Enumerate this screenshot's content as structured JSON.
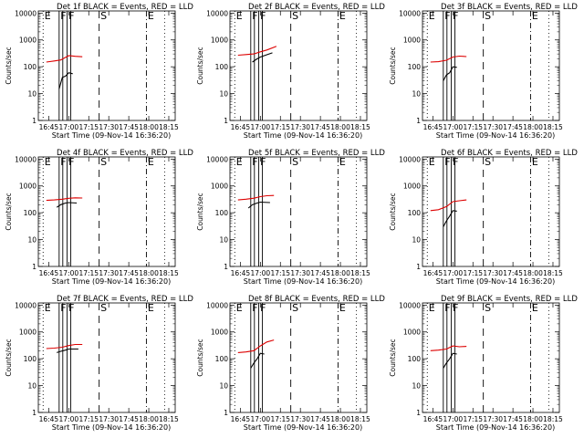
{
  "chart_data": {
    "type": "line",
    "panels": [
      {
        "title": "Det 1f BLACK = Events, RED = LLD",
        "xlabel": "Start Time (09-Nov-14 16:36:20)",
        "ylabel": "Counts/sec",
        "red": [
          [
            16.72,
            150
          ],
          [
            16.82,
            165
          ],
          [
            16.9,
            180
          ],
          [
            17.0,
            260
          ],
          [
            17.08,
            245
          ],
          [
            17.17,
            235
          ]
        ],
        "black": [
          [
            16.88,
            15
          ],
          [
            16.92,
            40
          ],
          [
            16.96,
            45
          ],
          [
            17.0,
            60
          ],
          [
            17.05,
            55
          ]
        ],
        "markers": [
          "E",
          "F",
          "F",
          "S",
          "E"
        ]
      },
      {
        "title": "Det 2f BLACK = Events, RED = LLD",
        "xlabel": "Start Time (09-Nov-14 16:36:20)",
        "ylabel": "Counts/sec",
        "red": [
          [
            16.72,
            270
          ],
          [
            16.82,
            285
          ],
          [
            16.92,
            300
          ],
          [
            17.0,
            360
          ],
          [
            17.08,
            420
          ],
          [
            17.2,
            580
          ]
        ],
        "black": [
          [
            16.9,
            150
          ],
          [
            16.95,
            190
          ],
          [
            17.0,
            230
          ],
          [
            17.08,
            280
          ],
          [
            17.15,
            330
          ]
        ],
        "markers": [
          "E",
          "F",
          "F",
          "S",
          "E"
        ]
      },
      {
        "title": "Det 3f BLACK = Events, RED = LLD",
        "xlabel": "Start Time (09-Nov-14 16:36:20)",
        "ylabel": "Counts/sec",
        "red": [
          [
            16.72,
            150
          ],
          [
            16.82,
            155
          ],
          [
            16.92,
            175
          ],
          [
            17.0,
            230
          ],
          [
            17.08,
            250
          ],
          [
            17.17,
            240
          ]
        ],
        "black": [
          [
            16.88,
            30
          ],
          [
            16.92,
            50
          ],
          [
            16.96,
            60
          ],
          [
            17.0,
            100
          ],
          [
            17.05,
            95
          ]
        ],
        "markers": [
          "E",
          "F",
          "F",
          "S",
          "E"
        ]
      },
      {
        "title": "Det 4f BLACK = Events, RED = LLD",
        "xlabel": "Start Time (09-Nov-14 16:36:20)",
        "ylabel": "Counts/sec",
        "red": [
          [
            16.72,
            290
          ],
          [
            16.82,
            300
          ],
          [
            16.92,
            320
          ],
          [
            17.0,
            345
          ],
          [
            17.08,
            360
          ],
          [
            17.17,
            355
          ]
        ],
        "black": [
          [
            16.85,
            160
          ],
          [
            16.9,
            200
          ],
          [
            16.96,
            230
          ],
          [
            17.0,
            240
          ],
          [
            17.1,
            230
          ]
        ],
        "markers": [
          "E",
          "F",
          "F",
          "S",
          "E"
        ]
      },
      {
        "title": "Det 5f BLACK = Events, RED = LLD",
        "xlabel": "Start Time (09-Nov-14 16:36:20)",
        "ylabel": "Counts/sec",
        "red": [
          [
            16.72,
            300
          ],
          [
            16.82,
            320
          ],
          [
            16.92,
            350
          ],
          [
            17.0,
            400
          ],
          [
            17.08,
            430
          ],
          [
            17.17,
            440
          ]
        ],
        "black": [
          [
            16.85,
            150
          ],
          [
            16.9,
            200
          ],
          [
            16.96,
            230
          ],
          [
            17.0,
            250
          ],
          [
            17.12,
            240
          ]
        ],
        "markers": [
          "E",
          "F",
          "F",
          "S",
          "E"
        ]
      },
      {
        "title": "Det 6f BLACK = Events, RED = LLD",
        "xlabel": "Start Time (09-Nov-14 16:36:20)",
        "ylabel": "Counts/sec",
        "red": [
          [
            16.72,
            120
          ],
          [
            16.82,
            130
          ],
          [
            16.92,
            170
          ],
          [
            17.0,
            260
          ],
          [
            17.08,
            280
          ],
          [
            17.17,
            300
          ]
        ],
        "black": [
          [
            16.88,
            30
          ],
          [
            16.92,
            50
          ],
          [
            16.96,
            75
          ],
          [
            17.0,
            120
          ],
          [
            17.05,
            115
          ]
        ],
        "markers": [
          "E",
          "F",
          "F",
          "S",
          "E"
        ]
      },
      {
        "title": "Det 7f BLACK = Events, RED = LLD",
        "xlabel": "Start Time (09-Nov-14 16:36:20)",
        "ylabel": "Counts/sec",
        "red": [
          [
            16.72,
            240
          ],
          [
            16.82,
            250
          ],
          [
            16.92,
            270
          ],
          [
            17.0,
            310
          ],
          [
            17.08,
            340
          ],
          [
            17.17,
            340
          ]
        ],
        "black": [
          [
            16.85,
            170
          ],
          [
            16.9,
            190
          ],
          [
            16.96,
            210
          ],
          [
            17.0,
            230
          ],
          [
            17.12,
            230
          ]
        ],
        "markers": [
          "E",
          "F",
          "F",
          "S",
          "E"
        ]
      },
      {
        "title": "Det 8f BLACK = Events, RED = LLD",
        "xlabel": "Start Time (09-Nov-14 16:36:20)",
        "ylabel": "Counts/sec",
        "red": [
          [
            16.72,
            170
          ],
          [
            16.82,
            180
          ],
          [
            16.92,
            200
          ],
          [
            17.0,
            300
          ],
          [
            17.08,
            420
          ],
          [
            17.17,
            500
          ]
        ],
        "black": [
          [
            16.88,
            45
          ],
          [
            16.92,
            70
          ],
          [
            16.96,
            100
          ],
          [
            17.0,
            160
          ],
          [
            17.05,
            150
          ]
        ],
        "markers": [
          "E",
          "F",
          "F",
          "S",
          "E"
        ]
      },
      {
        "title": "Det 9f BLACK = Events, RED = LLD",
        "xlabel": "Start Time (09-Nov-14 16:36:20)",
        "ylabel": "Counts/sec",
        "red": [
          [
            16.72,
            200
          ],
          [
            16.82,
            210
          ],
          [
            16.92,
            230
          ],
          [
            17.0,
            300
          ],
          [
            17.08,
            280
          ],
          [
            17.17,
            290
          ]
        ],
        "black": [
          [
            16.88,
            45
          ],
          [
            16.92,
            70
          ],
          [
            16.96,
            100
          ],
          [
            17.0,
            160
          ],
          [
            17.05,
            150
          ]
        ],
        "markers": [
          "E",
          "F",
          "F",
          "S",
          "E"
        ]
      }
    ],
    "x_ticks": [
      "16:45",
      "17:00",
      "17:15",
      "17:30",
      "17:45",
      "18:00",
      "18:15"
    ],
    "x_tick_hours": [
      16.75,
      17.0,
      17.25,
      17.5,
      17.75,
      18.0,
      18.25
    ],
    "y_ticks": [
      "1",
      "10",
      "100",
      "1000",
      "10000"
    ],
    "y_tick_values": [
      1,
      10,
      100,
      1000,
      10000
    ],
    "ylim": [
      1,
      12000
    ],
    "xlim": [
      16.62,
      18.33
    ],
    "y_scale": "log",
    "marker_hours": [
      16.68,
      16.88,
      16.98,
      17.38,
      17.97
    ],
    "marker_styles": [
      "dotted",
      "solid",
      "solid",
      "dashed",
      "dash-dot"
    ],
    "right_edge_line_hour": 18.2,
    "colors": {
      "events": "#000000",
      "lld": "#dd0000"
    }
  }
}
